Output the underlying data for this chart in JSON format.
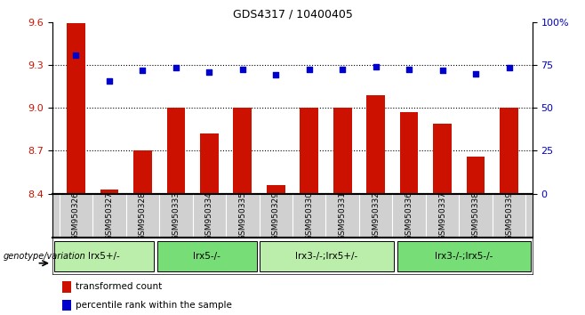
{
  "title": "GDS4317 / 10400405",
  "samples": [
    "GSM950326",
    "GSM950327",
    "GSM950328",
    "GSM950333",
    "GSM950334",
    "GSM950335",
    "GSM950329",
    "GSM950330",
    "GSM950331",
    "GSM950332",
    "GSM950336",
    "GSM950337",
    "GSM950338",
    "GSM950339"
  ],
  "bar_values": [
    9.59,
    8.43,
    8.7,
    9.0,
    8.82,
    9.0,
    8.46,
    9.0,
    9.0,
    9.09,
    8.97,
    8.89,
    8.66,
    9.0
  ],
  "scatter_left_values": [
    9.37,
    9.19,
    9.26,
    9.28,
    9.25,
    9.27,
    9.23,
    9.27,
    9.27,
    9.29,
    9.27,
    9.26,
    9.24,
    9.28
  ],
  "groups": [
    {
      "label": "lrx5+/-",
      "start": 0,
      "end": 3,
      "color": "#bbeeaa"
    },
    {
      "label": "lrx5-/-",
      "start": 3,
      "end": 6,
      "color": "#77dd77"
    },
    {
      "label": "lrx3-/-;lrx5+/-",
      "start": 6,
      "end": 10,
      "color": "#bbeeaa"
    },
    {
      "label": "lrx3-/-;lrx5-/-",
      "start": 10,
      "end": 14,
      "color": "#77dd77"
    }
  ],
  "ylim_left": [
    8.4,
    9.6
  ],
  "ylim_right": [
    0,
    100
  ],
  "yticks_left": [
    8.4,
    8.7,
    9.0,
    9.3,
    9.6
  ],
  "yticks_right": [
    0,
    25,
    50,
    75,
    100
  ],
  "bar_color": "#cc1100",
  "scatter_color": "#0000cc",
  "label_color_red": "#cc1100",
  "label_color_blue": "#0000cc",
  "genotype_label": "genotype/variation",
  "legend_bar": "transformed count",
  "legend_scatter": "percentile rank within the sample",
  "grid_yticks": [
    8.7,
    9.0,
    9.3
  ]
}
